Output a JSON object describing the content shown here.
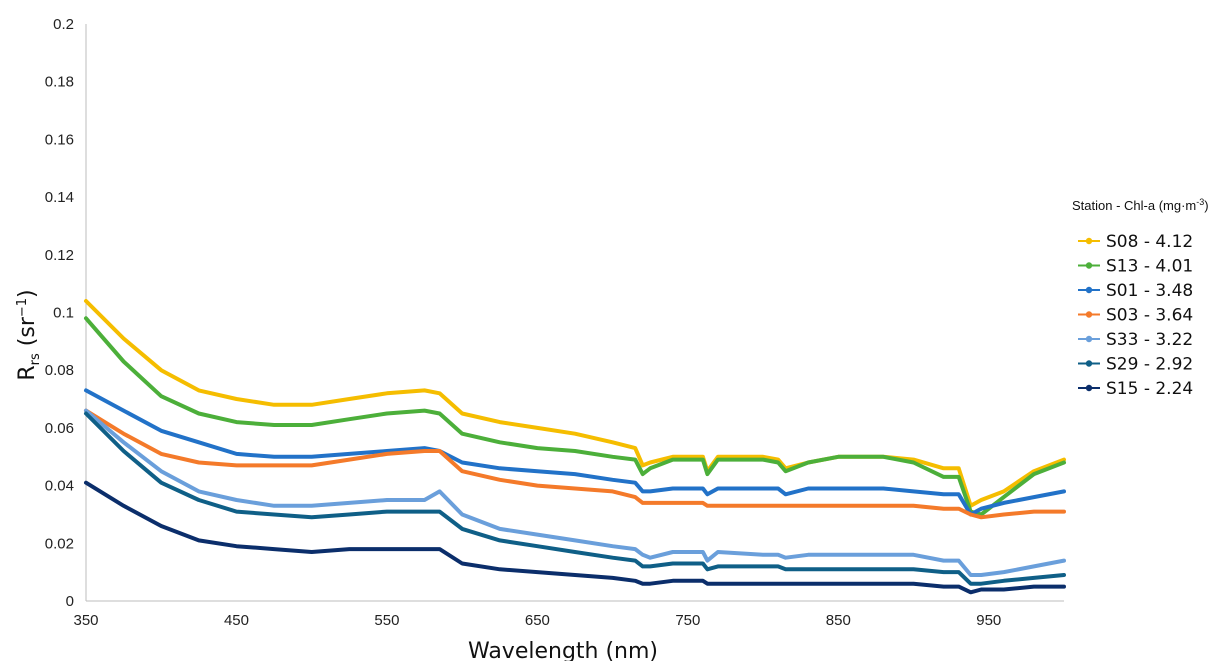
{
  "chart_data": {
    "type": "line",
    "xlabel": "Wavelength (nm)",
    "ylabel_main": "R",
    "ylabel_sub": "rs",
    "ylabel_unit_pre": " (sr",
    "ylabel_unit_sup": "−1",
    "ylabel_unit_post": ")",
    "xlim": [
      350,
      1000
    ],
    "ylim": [
      0,
      0.2
    ],
    "xticks": [
      350,
      450,
      550,
      650,
      750,
      850,
      950
    ],
    "xtick_labels": [
      "350",
      "450",
      "550",
      "650",
      "750",
      "850",
      "950"
    ],
    "yticks": [
      0,
      0.02,
      0.04,
      0.06,
      0.08,
      0.1,
      0.12,
      0.14,
      0.16,
      0.18,
      0.2
    ],
    "ytick_labels": [
      "0",
      "0.02",
      "0.04",
      "0.06",
      "0.08",
      "0.1",
      "0.12",
      "0.14",
      "0.16",
      "0.18",
      "0.2"
    ],
    "grid": false,
    "legend_position": "right",
    "legend_title_main": "Station - Chl-a (mg·m",
    "legend_title_sup": "-3",
    "legend_title_post": ")",
    "x": [
      350,
      375,
      400,
      425,
      450,
      475,
      500,
      525,
      550,
      575,
      585,
      600,
      625,
      650,
      675,
      700,
      715,
      720,
      725,
      740,
      760,
      763,
      770,
      800,
      810,
      815,
      830,
      850,
      880,
      900,
      920,
      930,
      938,
      945,
      960,
      980,
      1000
    ],
    "series": [
      {
        "name": "S08 - 4.12",
        "color": "#F5BD00",
        "values": [
          0.104,
          0.091,
          0.08,
          0.073,
          0.07,
          0.068,
          0.068,
          0.07,
          0.072,
          0.073,
          0.072,
          0.065,
          0.062,
          0.06,
          0.058,
          0.055,
          0.053,
          0.047,
          0.048,
          0.05,
          0.05,
          0.045,
          0.05,
          0.05,
          0.049,
          0.046,
          0.048,
          0.05,
          0.05,
          0.049,
          0.046,
          0.046,
          0.033,
          0.035,
          0.038,
          0.045,
          0.049
        ]
      },
      {
        "name": "S13 - 4.01",
        "color": "#4CAF3A",
        "values": [
          0.098,
          0.083,
          0.071,
          0.065,
          0.062,
          0.061,
          0.061,
          0.063,
          0.065,
          0.066,
          0.065,
          0.058,
          0.055,
          0.053,
          0.052,
          0.05,
          0.049,
          0.044,
          0.046,
          0.049,
          0.049,
          0.044,
          0.049,
          0.049,
          0.048,
          0.045,
          0.048,
          0.05,
          0.05,
          0.048,
          0.043,
          0.043,
          0.031,
          0.03,
          0.036,
          0.044,
          0.048
        ]
      },
      {
        "name": "S01 - 3.48",
        "color": "#2272C8",
        "values": [
          0.073,
          0.066,
          0.059,
          0.055,
          0.051,
          0.05,
          0.05,
          0.051,
          0.052,
          0.053,
          0.052,
          0.048,
          0.046,
          0.045,
          0.044,
          0.042,
          0.041,
          0.038,
          0.038,
          0.039,
          0.039,
          0.037,
          0.039,
          0.039,
          0.039,
          0.037,
          0.039,
          0.039,
          0.039,
          0.038,
          0.037,
          0.037,
          0.03,
          0.032,
          0.034,
          0.036,
          0.038
        ]
      },
      {
        "name": "S03 - 3.64",
        "color": "#F47A2A",
        "values": [
          0.066,
          0.058,
          0.051,
          0.048,
          0.047,
          0.047,
          0.047,
          0.049,
          0.051,
          0.052,
          0.052,
          0.045,
          0.042,
          0.04,
          0.039,
          0.038,
          0.036,
          0.034,
          0.034,
          0.034,
          0.034,
          0.033,
          0.033,
          0.033,
          0.033,
          0.033,
          0.033,
          0.033,
          0.033,
          0.033,
          0.032,
          0.032,
          0.03,
          0.029,
          0.03,
          0.031,
          0.031
        ]
      },
      {
        "name": "S33 - 3.22",
        "color": "#6A9FDB",
        "values": [
          0.066,
          0.055,
          0.045,
          0.038,
          0.035,
          0.033,
          0.033,
          0.034,
          0.035,
          0.035,
          0.038,
          0.03,
          0.025,
          0.023,
          0.021,
          0.019,
          0.018,
          0.016,
          0.015,
          0.017,
          0.017,
          0.014,
          0.017,
          0.016,
          0.016,
          0.015,
          0.016,
          0.016,
          0.016,
          0.016,
          0.014,
          0.014,
          0.009,
          0.009,
          0.01,
          0.012,
          0.014
        ]
      },
      {
        "name": "S29 - 2.92",
        "color": "#0F5F87",
        "values": [
          0.065,
          0.052,
          0.041,
          0.035,
          0.031,
          0.03,
          0.029,
          0.03,
          0.031,
          0.031,
          0.031,
          0.025,
          0.021,
          0.019,
          0.017,
          0.015,
          0.014,
          0.012,
          0.012,
          0.013,
          0.013,
          0.011,
          0.012,
          0.012,
          0.012,
          0.011,
          0.011,
          0.011,
          0.011,
          0.011,
          0.01,
          0.01,
          0.006,
          0.006,
          0.007,
          0.008,
          0.009
        ]
      },
      {
        "name": "S15 - 2.24",
        "color": "#0B2E6B",
        "values": [
          0.041,
          0.033,
          0.026,
          0.021,
          0.019,
          0.018,
          0.017,
          0.018,
          0.018,
          0.018,
          0.018,
          0.013,
          0.011,
          0.01,
          0.009,
          0.008,
          0.007,
          0.006,
          0.006,
          0.007,
          0.007,
          0.006,
          0.006,
          0.006,
          0.006,
          0.006,
          0.006,
          0.006,
          0.006,
          0.006,
          0.005,
          0.005,
          0.003,
          0.004,
          0.004,
          0.005,
          0.005
        ]
      }
    ]
  }
}
